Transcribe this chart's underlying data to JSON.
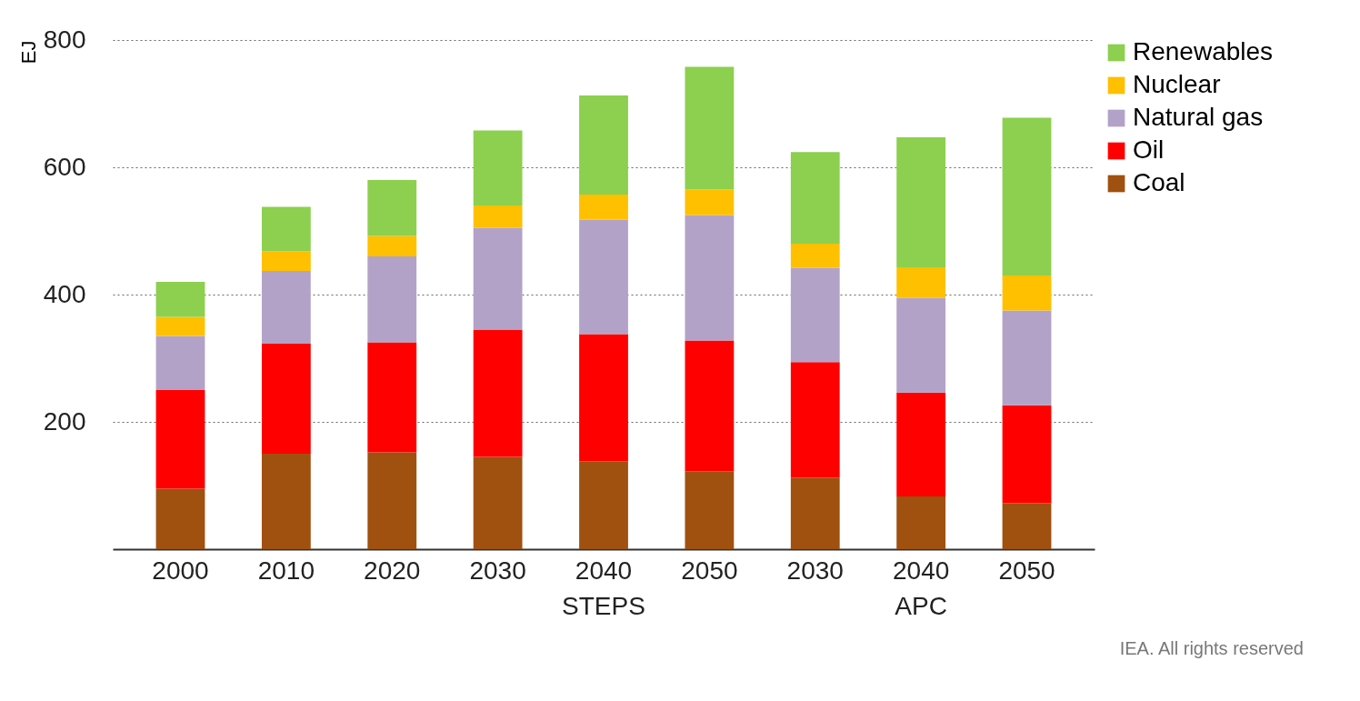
{
  "chart_data": {
    "type": "bar",
    "stacked": true,
    "ylabel": "EJ",
    "categories": [
      "2000",
      "2010",
      "2020",
      "2030",
      "2040",
      "2050",
      "2030",
      "2040",
      "2050"
    ],
    "series": [
      {
        "name": "Coal",
        "color": "#a0500f",
        "values": [
          95,
          150,
          152,
          145,
          138,
          122,
          112,
          83,
          72
        ]
      },
      {
        "name": "Oil",
        "color": "#ff0000",
        "values": [
          155,
          173,
          173,
          200,
          200,
          206,
          182,
          163,
          154
        ]
      },
      {
        "name": "Natural gas",
        "color": "#b3a2c7",
        "values": [
          85,
          114,
          135,
          160,
          180,
          197,
          148,
          149,
          149
        ]
      },
      {
        "name": "Nuclear",
        "color": "#ffc000",
        "values": [
          30,
          31,
          32,
          35,
          39,
          40,
          38,
          48,
          55
        ]
      },
      {
        "name": "Renewables",
        "color": "#8dcf4f",
        "values": [
          55,
          70,
          88,
          118,
          156,
          193,
          144,
          204,
          248
        ]
      }
    ],
    "ylim": [
      0,
      800
    ],
    "yticks": [
      200,
      400,
      600,
      800
    ],
    "grid": "y",
    "legend": "top right",
    "annotations": [
      "STEPS",
      "APC",
      "IEA. All rights reserved"
    ]
  }
}
